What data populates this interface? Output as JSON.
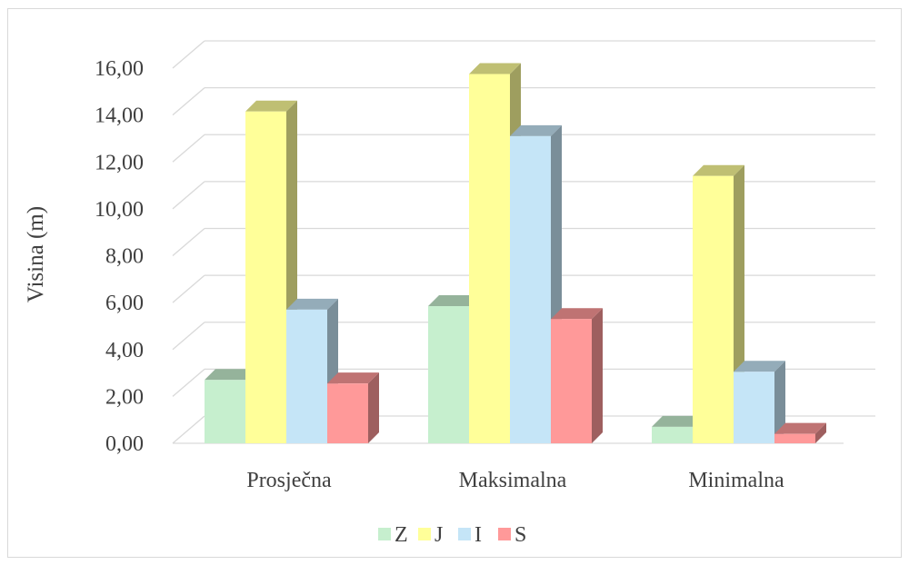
{
  "chart_data": {
    "type": "bar",
    "title": "",
    "xlabel": "",
    "ylabel": "Visina (m)",
    "ylim": [
      0,
      16
    ],
    "y_ticks": [
      "0,00",
      "2,00",
      "4,00",
      "6,00",
      "8,00",
      "10,00",
      "12,00",
      "14,00",
      "16,00"
    ],
    "grid": true,
    "legend_position": "bottom",
    "categories": [
      "Prosječna",
      "Maksimalna",
      "Minimalna"
    ],
    "series": [
      {
        "name": "Z",
        "color": "#c6efce",
        "values": [
          2.7,
          5.85,
          0.7
        ]
      },
      {
        "name": "J",
        "color": "#ffff99",
        "values": [
          14.15,
          15.75,
          11.4
        ]
      },
      {
        "name": "I",
        "color": "#c5e5f7",
        "values": [
          5.7,
          13.1,
          3.05
        ]
      },
      {
        "name": "S",
        "color": "#ff9999",
        "values": [
          2.55,
          5.3,
          0.4
        ]
      }
    ],
    "style": "3d-clustered-column"
  }
}
